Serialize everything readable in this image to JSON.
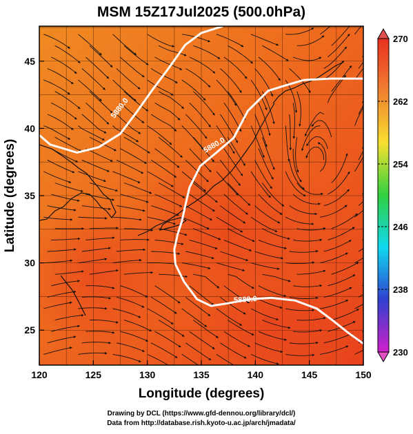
{
  "chart_data": {
    "type": "heatmap",
    "title": "MSM 15Z17Jul2025 (500.0hPa)",
    "xlabel": "Longitude (degrees)",
    "ylabel": "Latitude  (degrees)",
    "xlim": [
      120,
      150
    ],
    "ylim": [
      22.4,
      47.6
    ],
    "x_ticks": [
      120,
      125,
      130,
      135,
      140,
      145,
      150
    ],
    "y_ticks": [
      25,
      30,
      35,
      40,
      45
    ],
    "colorbar": {
      "min": 230,
      "max": 270,
      "tick_labels": [
        230,
        238,
        246,
        254,
        262,
        270
      ],
      "colors": [
        "#d020c8",
        "#3040d0",
        "#10d8f0",
        "#30d040",
        "#f8e030",
        "#f08030",
        "#e83020"
      ]
    },
    "field_colors": {
      "warm": "#e8421c",
      "mid": "#ee6a1e",
      "cool": "#f08a22"
    },
    "contours": [
      {
        "label": "5880.0",
        "points": [
          [
            120,
            39.5
          ],
          [
            121,
            38.8
          ],
          [
            123.5,
            38.2
          ],
          [
            125.5,
            38.6
          ],
          [
            127.5,
            39.6
          ],
          [
            129,
            41.2
          ],
          [
            130.5,
            42.9
          ],
          [
            132,
            44.5
          ],
          [
            133.5,
            46.2
          ],
          [
            135,
            47.1
          ],
          [
            137,
            47.6
          ]
        ]
      },
      {
        "label": "5880.0",
        "points": [
          [
            150,
            43.7
          ],
          [
            147,
            43.7
          ],
          [
            144.5,
            43.6
          ],
          [
            142.8,
            43.2
          ],
          [
            141.2,
            42.8
          ],
          [
            139.3,
            41.3
          ],
          [
            138,
            39.3
          ],
          [
            136.4,
            38.2
          ],
          [
            134.9,
            37.2
          ],
          [
            133.9,
            35.6
          ],
          [
            133.5,
            34.2
          ],
          [
            133.2,
            33.1
          ],
          [
            132.8,
            32.1
          ],
          [
            132.5,
            31.0
          ],
          [
            132.6,
            29.9
          ],
          [
            133.4,
            28.6
          ],
          [
            134.6,
            27.3
          ],
          [
            135.9,
            26.8
          ],
          [
            137.5,
            27.0
          ],
          [
            139.5,
            27.3
          ],
          [
            141.5,
            27.4
          ],
          [
            143.7,
            27.2
          ],
          [
            145.7,
            26.6
          ],
          [
            147.2,
            25.7
          ],
          [
            148.6,
            24.8
          ],
          [
            150,
            24.0
          ]
        ]
      }
    ],
    "contour_labels": [
      {
        "text": "5880.0",
        "x": 127.6,
        "y": 41.4,
        "angle": -52
      },
      {
        "text": "5880.0",
        "x": 136.3,
        "y": 38.6,
        "angle": -30
      },
      {
        "text": "5880.0",
        "x": 139.1,
        "y": 27.1,
        "angle": -4
      }
    ],
    "vortex": {
      "x": 145.5,
      "y": 36.6
    }
  },
  "footer": {
    "line1": "Drawing by DCL (https://www.gfd-dennou.org/library/dcl/)",
    "line2": "Data from http://database.rish.kyoto-u.ac.jp/arch/jmadata/"
  }
}
